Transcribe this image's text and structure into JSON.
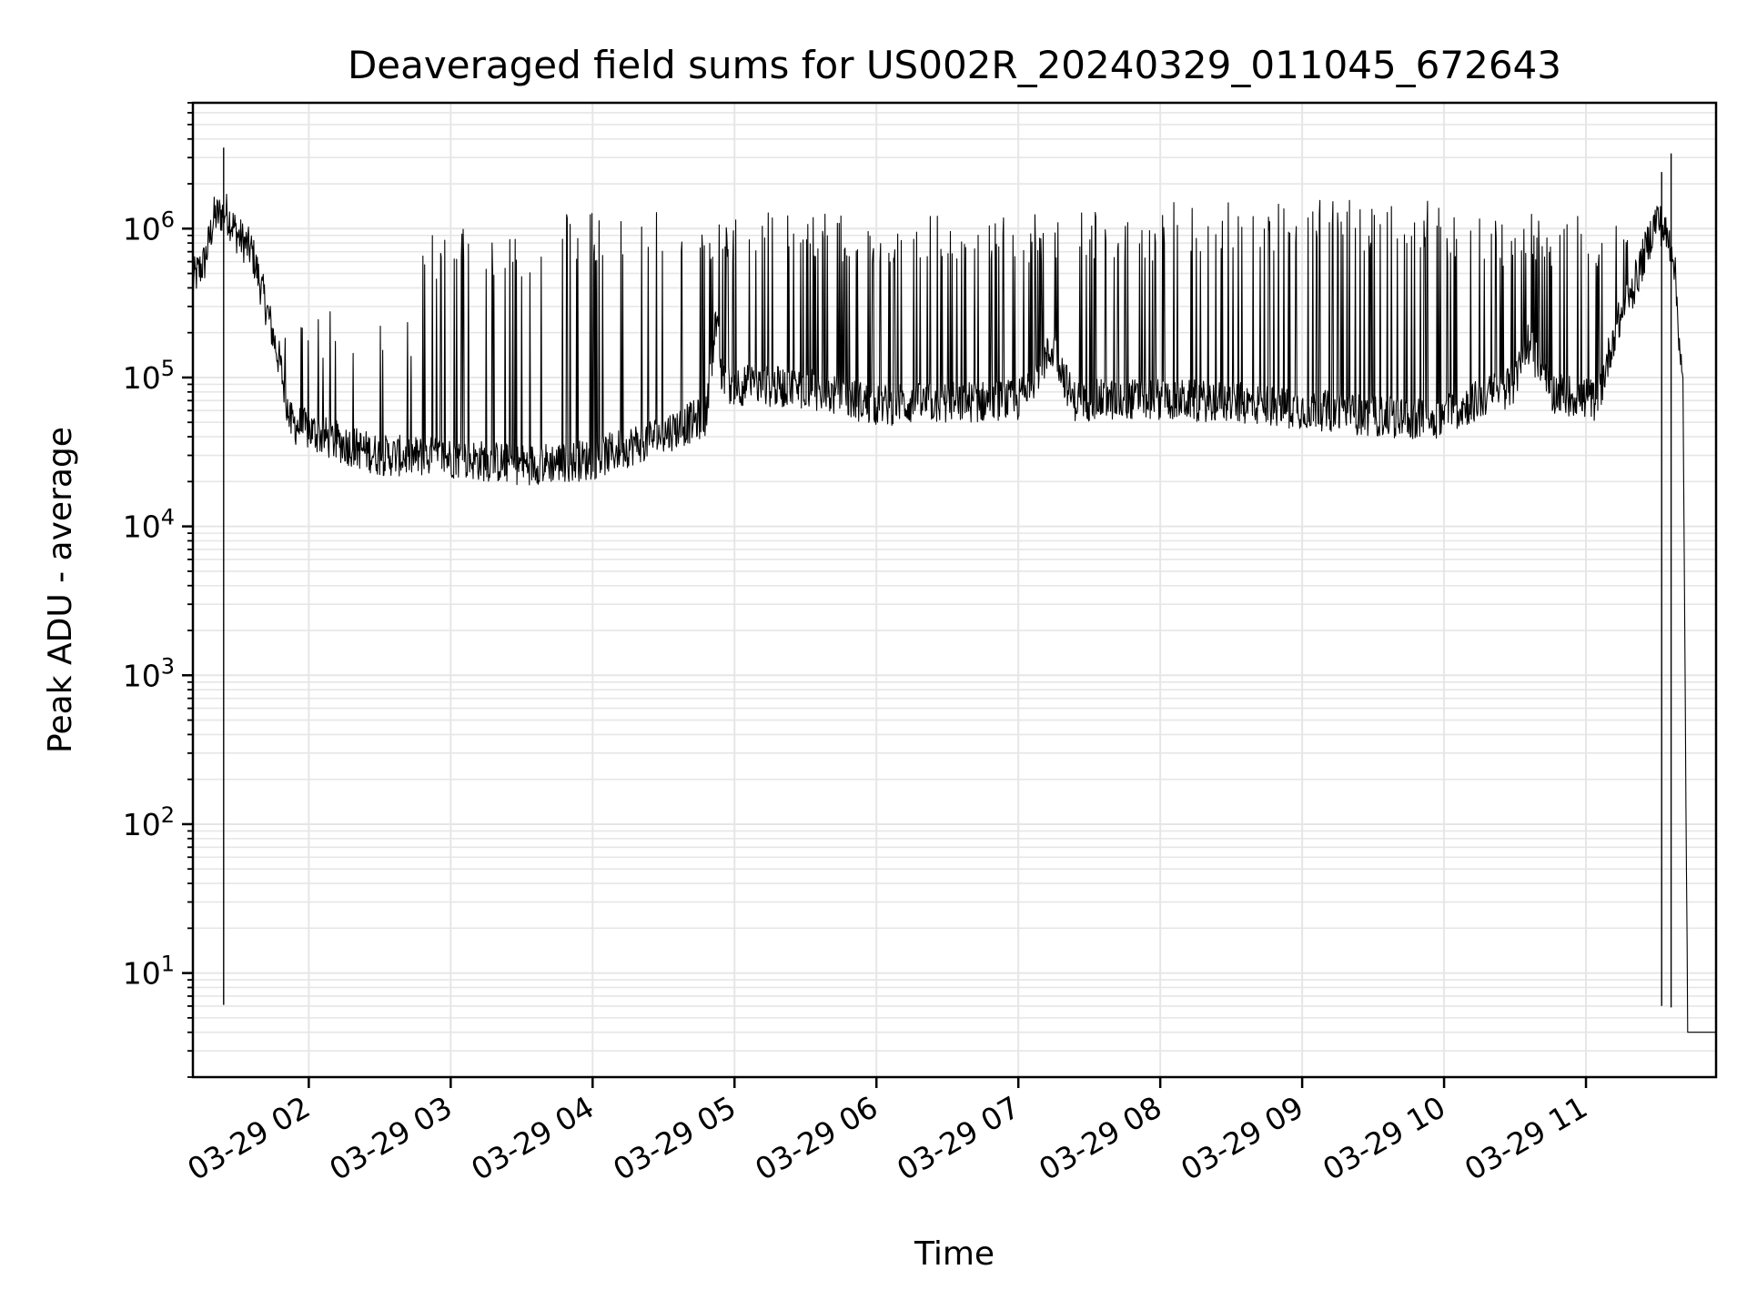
{
  "chart_data": {
    "type": "line",
    "title": "Deaveraged field sums for US002R_20240329_011045_672643",
    "xlabel": "Time",
    "ylabel": "Peak ADU - average",
    "yscale": "log",
    "ylim": [
      2,
      7000000
    ],
    "xlim": [
      "03-29 01:11",
      "03-29 11:55"
    ],
    "grid": true,
    "colors": {
      "line": "#000000",
      "grid": "#e6e6e6",
      "axes": "#000000"
    },
    "x_ticks": [
      {
        "time": "03-29 02:00",
        "label": "03-29 02"
      },
      {
        "time": "03-29 03:00",
        "label": "03-29 03"
      },
      {
        "time": "03-29 04:00",
        "label": "03-29 04"
      },
      {
        "time": "03-29 05:00",
        "label": "03-29 05"
      },
      {
        "time": "03-29 06:00",
        "label": "03-29 06"
      },
      {
        "time": "03-29 07:00",
        "label": "03-29 07"
      },
      {
        "time": "03-29 08:00",
        "label": "03-29 08"
      },
      {
        "time": "03-29 09:00",
        "label": "03-29 09"
      },
      {
        "time": "03-29 10:00",
        "label": "03-29 10"
      },
      {
        "time": "03-29 11:00",
        "label": "03-29 11"
      }
    ],
    "y_ticks": [
      {
        "value": 10,
        "base": "10",
        "exp": "1"
      },
      {
        "value": 100,
        "base": "10",
        "exp": "2"
      },
      {
        "value": 1000,
        "base": "10",
        "exp": "3"
      },
      {
        "value": 10000,
        "base": "10",
        "exp": "4"
      },
      {
        "value": 100000,
        "base": "10",
        "exp": "5"
      },
      {
        "value": 1000000,
        "base": "10",
        "exp": "6"
      }
    ],
    "series": [
      {
        "baseline": [
          {
            "time": "03-29 01:11",
            "value": 450000
          },
          {
            "time": "03-29 01:16",
            "value": 600000
          },
          {
            "time": "03-29 01:20",
            "value": 1200000
          },
          {
            "time": "03-29 01:25",
            "value": 1300000
          },
          {
            "time": "03-29 01:30",
            "value": 900000
          },
          {
            "time": "03-29 01:36",
            "value": 700000
          },
          {
            "time": "03-29 01:42",
            "value": 300000
          },
          {
            "time": "03-29 01:48",
            "value": 120000
          },
          {
            "time": "03-29 01:52",
            "value": 50000
          },
          {
            "time": "03-29 02:10",
            "value": 38000
          },
          {
            "time": "03-29 02:30",
            "value": 30000
          },
          {
            "time": "03-29 03:00",
            "value": 29000
          },
          {
            "time": "03-29 03:30",
            "value": 26000
          },
          {
            "time": "03-29 04:00",
            "value": 28000
          },
          {
            "time": "03-29 04:30",
            "value": 42000
          },
          {
            "time": "03-29 04:48",
            "value": 55000
          },
          {
            "time": "03-29 04:52",
            "value": 250000
          },
          {
            "time": "03-29 04:55",
            "value": 90000
          },
          {
            "time": "03-29 05:30",
            "value": 85000
          },
          {
            "time": "03-29 06:00",
            "value": 65000
          },
          {
            "time": "03-29 06:30",
            "value": 68000
          },
          {
            "time": "03-29 07:00",
            "value": 70000
          },
          {
            "time": "03-29 07:15",
            "value": 160000
          },
          {
            "time": "03-29 07:23",
            "value": 70000
          },
          {
            "time": "03-29 08:00",
            "value": 72000
          },
          {
            "time": "03-29 08:30",
            "value": 68000
          },
          {
            "time": "03-29 09:00",
            "value": 62000
          },
          {
            "time": "03-29 09:30",
            "value": 55000
          },
          {
            "time": "03-29 09:55",
            "value": 52000
          },
          {
            "time": "03-29 10:30",
            "value": 90000
          },
          {
            "time": "03-29 10:35",
            "value": 180000
          },
          {
            "time": "03-29 10:45",
            "value": 80000
          },
          {
            "time": "03-29 11:05",
            "value": 70000
          },
          {
            "time": "03-29 11:12",
            "value": 200000
          },
          {
            "time": "03-29 11:20",
            "value": 400000
          },
          {
            "time": "03-29 11:30",
            "value": 1200000
          },
          {
            "time": "03-29 11:37",
            "value": 700000
          },
          {
            "time": "03-29 11:41",
            "value": 80000
          },
          {
            "time": "03-29 11:43",
            "value": 4
          },
          {
            "time": "03-29 11:55",
            "value": 4
          }
        ],
        "spike_peaks": [
          {
            "start": "03-29 01:50",
            "end": "03-29 02:45",
            "value": 300000
          },
          {
            "start": "03-29 02:45",
            "end": "03-29 03:40",
            "value": 1000000
          },
          {
            "start": "03-29 03:40",
            "end": "03-29 04:45",
            "value": 1300000
          },
          {
            "start": "03-29 04:45",
            "end": "03-29 08:00",
            "value": 1300000
          },
          {
            "start": "03-29 08:00",
            "end": "03-29 10:00",
            "value": 1550000
          },
          {
            "start": "03-29 10:00",
            "end": "03-29 11:20",
            "value": 1250000
          }
        ],
        "notable_spikes": [
          {
            "time": "03-29 01:24",
            "value": 3500000
          },
          {
            "time": "03-29 11:36",
            "value": 3200000
          },
          {
            "time": "03-29 11:32",
            "value": 2400000
          }
        ]
      }
    ]
  }
}
